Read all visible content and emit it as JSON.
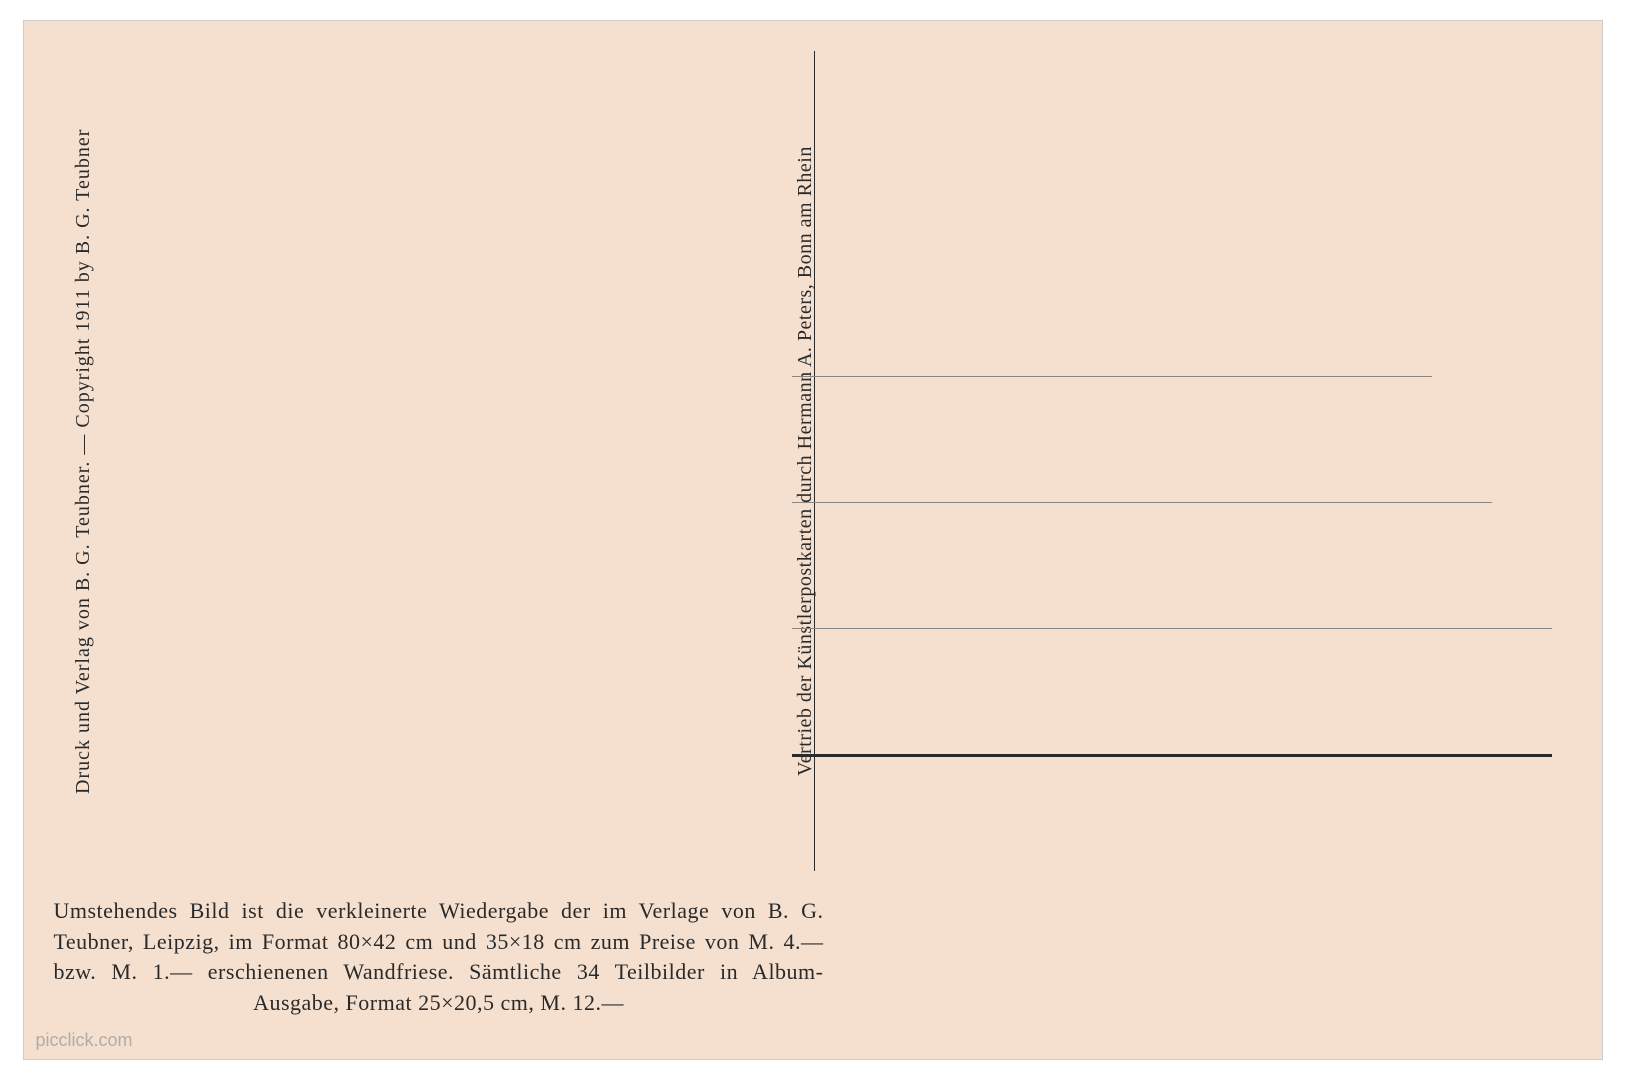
{
  "postcard": {
    "left_vertical": "Druck und Verlag von B. G. Teubner.  —  Copyright 1911 by B. G. Teubner",
    "center_vertical": "Vertrieb der Künstlerpostkarten durch Hermann A. Peters, Bonn am Rhein",
    "bottom_paragraph": "Umstehendes Bild ist die verkleinerte Wiedergabe der im Verlage von B. G. Teubner, Leipzig, im Format 80×42 cm und 35×18 cm zum Preise von M. 4.— bzw. M. 1.— erschienenen Wandfriese. Sämtliche 34 Teilbilder in Album-Ausgabe, Format 25×20,5 cm, M. 12.—",
    "watermark": "picclick.com"
  },
  "styling": {
    "postcard_bg": "#f5e0d0",
    "text_color": "#2a2a2a",
    "line_color_light": "#888888",
    "line_color_bold": "#2a2a2a",
    "font_family": "Georgia, Times New Roman, serif",
    "vertical_font_size": 20,
    "bottom_font_size": 22
  }
}
